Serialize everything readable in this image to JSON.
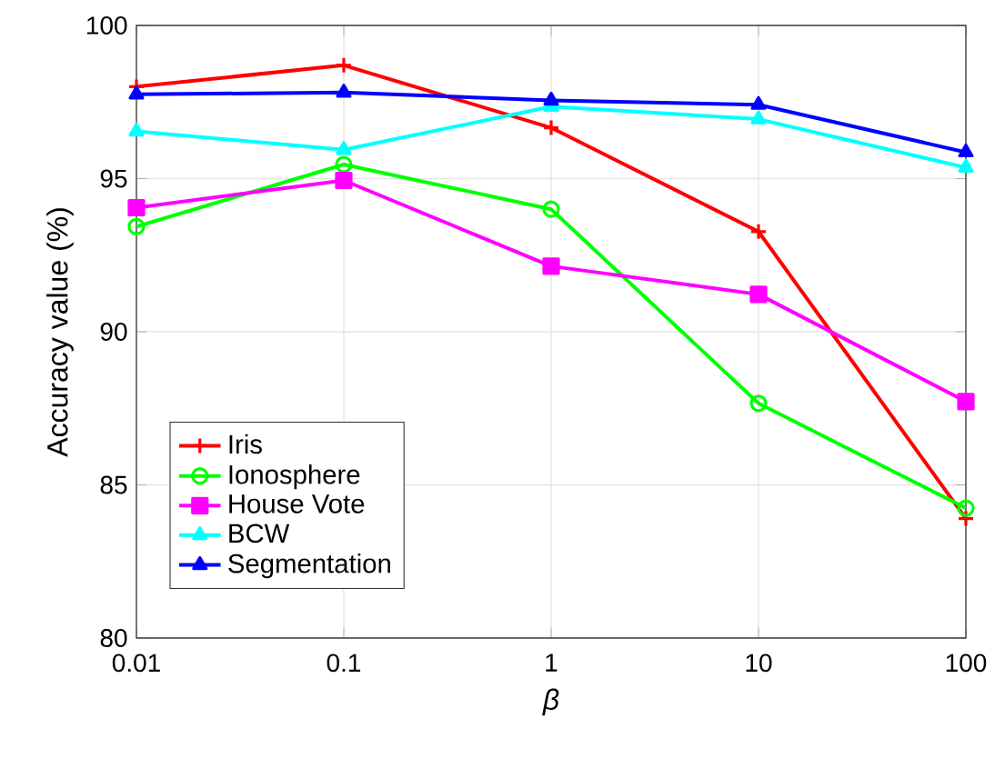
{
  "chart_data": {
    "type": "line",
    "xlabel": "β",
    "ylabel": "Accuracy value (%)",
    "x": [
      0.01,
      0.1,
      1,
      10,
      100
    ],
    "log": "x",
    "xlim": [
      0.01,
      100
    ],
    "xticks": [
      0.01,
      0.1,
      1,
      10,
      100
    ],
    "ylim": [
      80,
      100
    ],
    "yticks": [
      80,
      85,
      90,
      95,
      100
    ],
    "grid": true,
    "legend": "bottom left",
    "line_style": "solid",
    "series": [
      {
        "name": "Iris",
        "color": "#ff0000",
        "marker": "cross",
        "values": [
          98.0,
          98.7,
          96.66,
          93.27,
          83.9
        ]
      },
      {
        "name": "Ionosphere",
        "color": "#00ff00",
        "marker": "circle",
        "values": [
          93.43,
          95.46,
          94.0,
          87.66,
          84.24
        ]
      },
      {
        "name": "House Vote",
        "color": "#ff00ff",
        "marker": "square",
        "values": [
          94.05,
          94.94,
          92.14,
          91.22,
          87.72
        ]
      },
      {
        "name": "BCW",
        "color": "#00ffff",
        "marker": "triangle",
        "values": [
          96.54,
          95.94,
          97.35,
          96.94,
          95.36
        ]
      },
      {
        "name": "Segmentation",
        "color": "#0000ff",
        "marker": "triangle",
        "values": [
          97.75,
          97.81,
          97.55,
          97.41,
          95.86
        ]
      }
    ]
  }
}
